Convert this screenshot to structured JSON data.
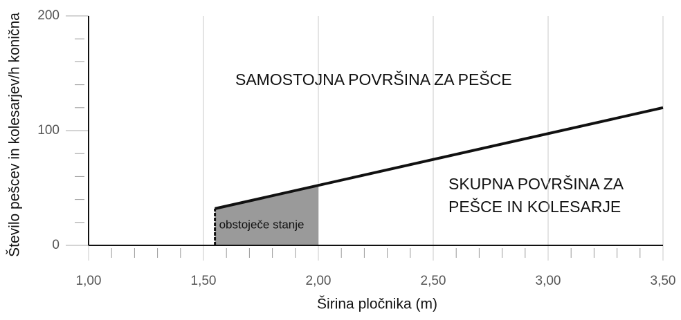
{
  "chart_data": {
    "type": "line",
    "x_label": "Širina pločnika (m)",
    "y_label": "Število pešcev in kolesarjev/h konična",
    "x": [
      1.55,
      3.5
    ],
    "series": [
      {
        "color": "#111111",
        "values": [
          32,
          120
        ]
      }
    ],
    "xlim": [
      1.0,
      3.5
    ],
    "ylim": [
      0,
      200
    ],
    "xticks": [
      {
        "value": 1.0,
        "label": "1,00"
      },
      {
        "value": 1.5,
        "label": "1,50"
      },
      {
        "value": 2.0,
        "label": "2,00"
      },
      {
        "value": 2.5,
        "label": "2,50"
      },
      {
        "value": 3.0,
        "label": "3,00"
      },
      {
        "value": 3.5,
        "label": "3,50"
      }
    ],
    "xminorticks": [
      1.1,
      1.2,
      1.3,
      1.4,
      1.6,
      1.7,
      1.8,
      1.9,
      2.1,
      2.2,
      2.3,
      2.4,
      2.6,
      2.7,
      2.8,
      2.9,
      3.1,
      3.2,
      3.3,
      3.4
    ],
    "yticks": [
      0,
      100,
      200
    ],
    "yminorticks": [
      20,
      40,
      60,
      80,
      120,
      140,
      160,
      180
    ],
    "grid": true,
    "shaded_region": {
      "x": [
        1.55,
        2.0
      ],
      "color": "#9a9a9a",
      "label": "obstoječe stanje"
    },
    "annotations": {
      "upper": "SAMOSTOJNA POVRŠINA ZA PEŠCE",
      "lower": [
        "SKUPNA POVRŠINA ZA",
        "PEŠCE IN KOLESARJE"
      ]
    }
  }
}
